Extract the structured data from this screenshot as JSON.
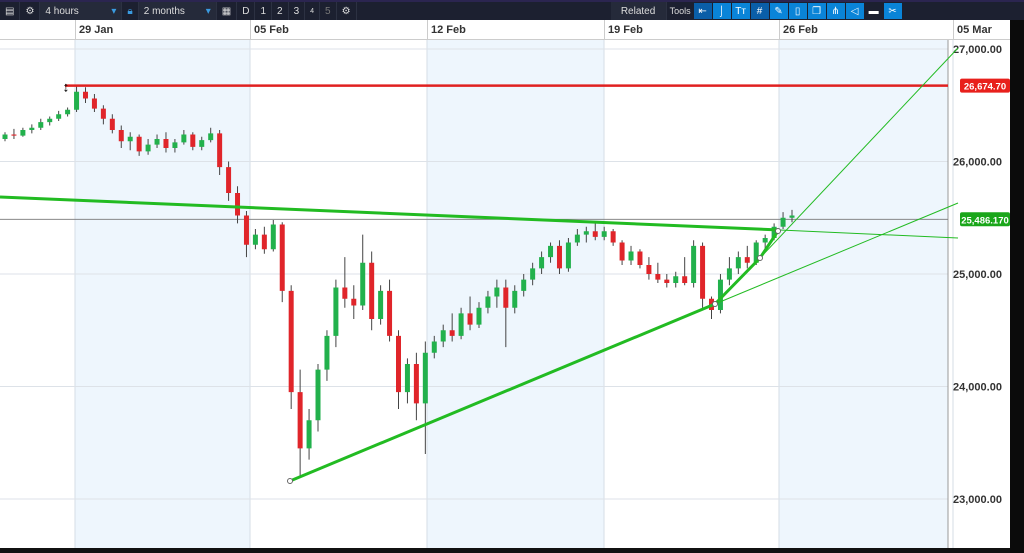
{
  "toolbar": {
    "interval": "4 hours",
    "range": "2 months",
    "buttons": [
      "D",
      "1",
      "2",
      "3",
      "4",
      "5"
    ],
    "related": "Related",
    "tools_label": "Tools",
    "tools": [
      "arrow-left-icon",
      "curve-icon",
      "text-icon",
      "grid-icon",
      "pen-icon",
      "candle-icon",
      "copy-icon",
      "fork-icon",
      "label-icon",
      "print-icon",
      "settings-tools-icon"
    ]
  },
  "chart_data": {
    "type": "candlestick",
    "x_ticks": [
      "29 Jan",
      "05 Feb",
      "12 Feb",
      "19 Feb",
      "26 Feb",
      "05 Mar"
    ],
    "y_ticks": [
      {
        "v": 27000,
        "label": "27,000.00"
      },
      {
        "v": 26000,
        "label": "26,000.00"
      },
      {
        "v": 25000,
        "label": "25,000.00"
      },
      {
        "v": 24000,
        "label": "24,000.00"
      },
      {
        "v": 23000,
        "label": "23,000.00"
      }
    ],
    "ylim": [
      22600,
      27300
    ],
    "colors": {
      "up": "#22b14c",
      "down": "#e0252a",
      "trend": "#22bb22",
      "level": "#e02020"
    },
    "level_line": {
      "value": 26674.7,
      "label": "26,674.70"
    },
    "last_price": {
      "value": 25486.17,
      "label": "25,486.170"
    },
    "candles": [
      [
        26200,
        26260,
        26180,
        26240
      ],
      [
        26240,
        26290,
        26200,
        26230
      ],
      [
        26230,
        26300,
        26220,
        26280
      ],
      [
        26280,
        26330,
        26250,
        26300
      ],
      [
        26300,
        26380,
        26280,
        26350
      ],
      [
        26350,
        26400,
        26320,
        26380
      ],
      [
        26380,
        26450,
        26360,
        26420
      ],
      [
        26420,
        26480,
        26400,
        26460
      ],
      [
        26460,
        26680,
        26440,
        26620
      ],
      [
        26620,
        26660,
        26520,
        26560
      ],
      [
        26560,
        26600,
        26440,
        26470
      ],
      [
        26470,
        26500,
        26330,
        26380
      ],
      [
        26380,
        26420,
        26250,
        26280
      ],
      [
        26280,
        26320,
        26120,
        26180
      ],
      [
        26180,
        26260,
        26100,
        26220
      ],
      [
        26220,
        26240,
        26050,
        26090
      ],
      [
        26090,
        26200,
        26060,
        26150
      ],
      [
        26150,
        26240,
        26120,
        26200
      ],
      [
        26200,
        26260,
        26080,
        26120
      ],
      [
        26120,
        26200,
        26080,
        26170
      ],
      [
        26170,
        26280,
        26150,
        26240
      ],
      [
        26240,
        26260,
        26100,
        26130
      ],
      [
        26130,
        26220,
        26100,
        26190
      ],
      [
        26190,
        26300,
        26170,
        26250
      ],
      [
        26250,
        26280,
        25880,
        25950
      ],
      [
        25950,
        26000,
        25650,
        25720
      ],
      [
        25720,
        25780,
        25450,
        25520
      ],
      [
        25520,
        25560,
        25150,
        25260
      ],
      [
        25260,
        25400,
        25220,
        25350
      ],
      [
        25350,
        25420,
        25180,
        25220
      ],
      [
        25220,
        25480,
        25200,
        25440
      ],
      [
        25440,
        25460,
        24750,
        24850
      ],
      [
        24850,
        24900,
        23800,
        23950
      ],
      [
        23950,
        24150,
        23200,
        23450
      ],
      [
        23450,
        23800,
        23350,
        23700
      ],
      [
        23700,
        24200,
        23600,
        24150
      ],
      [
        24150,
        24500,
        24050,
        24450
      ],
      [
        24450,
        24950,
        24350,
        24880
      ],
      [
        24880,
        25150,
        24700,
        24780
      ],
      [
        24780,
        24900,
        24600,
        24720
      ],
      [
        24720,
        25350,
        24680,
        25100
      ],
      [
        25100,
        25200,
        24500,
        24600
      ],
      [
        24600,
        24900,
        24550,
        24850
      ],
      [
        24850,
        24950,
        24400,
        24450
      ],
      [
        24450,
        24500,
        23800,
        23950
      ],
      [
        23950,
        24250,
        23850,
        24200
      ],
      [
        24200,
        24300,
        23700,
        23850
      ],
      [
        23850,
        24400,
        23400,
        24300
      ],
      [
        24300,
        24450,
        24250,
        24400
      ],
      [
        24400,
        24550,
        24350,
        24500
      ],
      [
        24500,
        24650,
        24400,
        24450
      ],
      [
        24450,
        24700,
        24420,
        24650
      ],
      [
        24650,
        24800,
        24500,
        24550
      ],
      [
        24550,
        24750,
        24520,
        24700
      ],
      [
        24700,
        24850,
        24650,
        24800
      ],
      [
        24800,
        24950,
        24700,
        24880
      ],
      [
        24880,
        24950,
        24350,
        24700
      ],
      [
        24700,
        24900,
        24650,
        24850
      ],
      [
        24850,
        25000,
        24800,
        24950
      ],
      [
        24950,
        25100,
        24900,
        25050
      ],
      [
        25050,
        25200,
        25000,
        25150
      ],
      [
        25150,
        25280,
        25100,
        25250
      ],
      [
        25250,
        25300,
        25000,
        25050
      ],
      [
        25050,
        25320,
        25020,
        25280
      ],
      [
        25280,
        25400,
        25250,
        25350
      ],
      [
        25350,
        25420,
        25280,
        25380
      ],
      [
        25380,
        25450,
        25300,
        25330
      ],
      [
        25330,
        25420,
        25300,
        25380
      ],
      [
        25380,
        25400,
        25250,
        25280
      ],
      [
        25280,
        25300,
        25080,
        25120
      ],
      [
        25120,
        25250,
        25080,
        25200
      ],
      [
        25200,
        25220,
        25050,
        25080
      ],
      [
        25080,
        25150,
        24950,
        25000
      ],
      [
        25000,
        25100,
        24920,
        24950
      ],
      [
        24950,
        25000,
        24880,
        24920
      ],
      [
        24920,
        25020,
        24880,
        24980
      ],
      [
        24980,
        25150,
        24900,
        24920
      ],
      [
        24920,
        25300,
        24880,
        25250
      ],
      [
        25250,
        25280,
        24700,
        24780
      ],
      [
        24780,
        24800,
        24600,
        24680
      ],
      [
        24680,
        25000,
        24650,
        24950
      ],
      [
        24950,
        25150,
        24900,
        25050
      ],
      [
        25050,
        25200,
        25000,
        25150
      ],
      [
        25150,
        25250,
        25050,
        25100
      ],
      [
        25100,
        25300,
        25080,
        25280
      ],
      [
        25280,
        25350,
        25200,
        25320
      ],
      [
        25320,
        25450,
        25300,
        25420
      ],
      [
        25420,
        25550,
        25400,
        25500
      ],
      [
        25500,
        25570,
        25460,
        25520
      ]
    ]
  }
}
